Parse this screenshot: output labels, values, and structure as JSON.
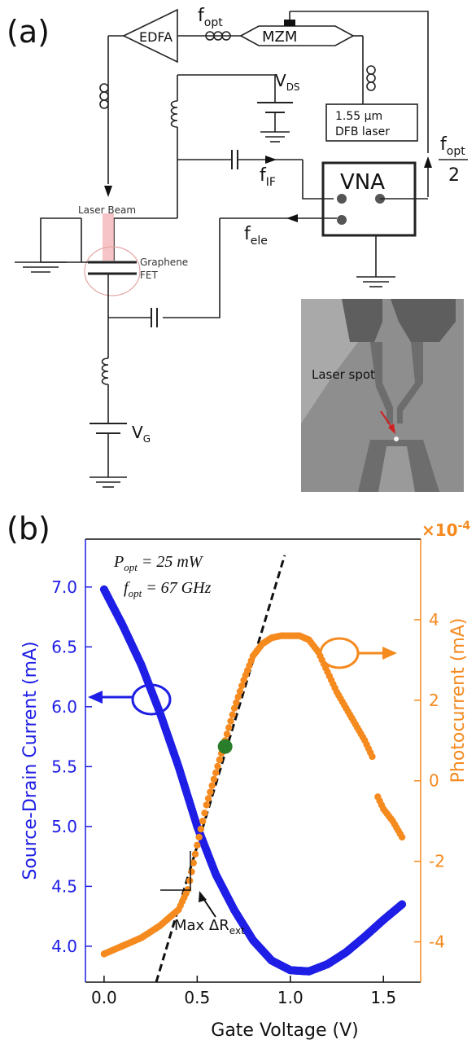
{
  "panel_a": {
    "label": "(a)",
    "edfa": "EDFA",
    "mzm": "MZM",
    "f_opt_base": "f",
    "f_opt_sub": "opt",
    "vds_base": "V",
    "vds_sub": "DS",
    "laser_line1": "1.55 μm",
    "laser_line2": "DFB laser",
    "vna": "VNA",
    "fopt2_num_base": "f",
    "fopt2_num_sub": "opt",
    "fopt2_den": "2",
    "fif_base": "f",
    "fif_sub": "IF",
    "fele_base": "f",
    "fele_sub": "ele",
    "laser_beam": "Laser Beam",
    "graphene1": "Graphene",
    "graphene2": "FET",
    "vg_base": "V",
    "vg_sub": "G",
    "inset_label": "Laser spot"
  },
  "panel_b": {
    "label": "(b)",
    "exp_label": "×10",
    "exp_sup": "-4",
    "popt_base": "P",
    "popt_sub": "opt",
    "popt_val": " = 25 mW",
    "fopt_base": "f",
    "fopt_sub": "opt",
    "fopt_val": " = 67 GHz",
    "ylabel_left": "Source-Drain Current (mA)",
    "ylabel_right": "Photocurrent (mA)",
    "xlabel": "Gate Voltage (V)",
    "max_label": "Max ΔR",
    "max_sub": "ext"
  },
  "colors": {
    "blue": "#1e1ee6",
    "orange": "#f58a1f",
    "green": "#2a7d2a"
  },
  "chart_data": {
    "type": "scatter",
    "xlabel": "Gate Voltage (V)",
    "ylabel": "Source-Drain Current (mA)",
    "y2label": "Photocurrent (mA)",
    "y2_multiplier": "×10^-4",
    "xlim": [
      -0.1,
      1.7
    ],
    "ylim": [
      3.7,
      7.4
    ],
    "y2lim": [
      -5,
      6
    ],
    "xticks": [
      "0.0",
      "0.5",
      "1.0",
      "1.5"
    ],
    "yticks": [
      "4.0",
      "4.5",
      "5.0",
      "5.5",
      "6.0",
      "6.5",
      "7.0"
    ],
    "y2ticks": [
      "-4",
      "-2",
      "0",
      "2",
      "4"
    ],
    "series": [
      {
        "name": "Source-Drain Current",
        "axis": "left",
        "color": "#1e1ee6",
        "x": [
          0.0,
          0.1,
          0.2,
          0.3,
          0.4,
          0.5,
          0.6,
          0.7,
          0.8,
          0.9,
          1.0,
          1.1,
          1.2,
          1.3,
          1.4,
          1.5,
          1.6
        ],
        "y": [
          6.98,
          6.68,
          6.35,
          5.95,
          5.5,
          5.0,
          4.6,
          4.3,
          4.05,
          3.88,
          3.8,
          3.79,
          3.85,
          3.95,
          4.08,
          4.22,
          4.35
        ]
      },
      {
        "name": "Photocurrent",
        "axis": "right",
        "color": "#f58a1f",
        "x": [
          0.0,
          0.1,
          0.2,
          0.3,
          0.35,
          0.4,
          0.45,
          0.5,
          0.55,
          0.6,
          0.65,
          0.7,
          0.75,
          0.8,
          0.85,
          0.9,
          0.95,
          1.0,
          1.05,
          1.1,
          1.15,
          1.2,
          1.25,
          1.3,
          1.35,
          1.4,
          1.45,
          1.47,
          1.5,
          1.55,
          1.6
        ],
        "y": [
          -4.3,
          -4.1,
          -3.9,
          -3.6,
          -3.4,
          -3.2,
          -2.7,
          -1.6,
          -0.6,
          0.2,
          1.0,
          1.8,
          2.5,
          3.1,
          3.4,
          3.55,
          3.6,
          3.6,
          3.6,
          3.5,
          3.2,
          2.7,
          2.2,
          1.8,
          1.4,
          1.0,
          0.5,
          -0.4,
          -0.7,
          -1.0,
          -1.4
        ]
      }
    ],
    "annotations": [
      {
        "type": "marker",
        "x": 0.65,
        "y2": 0.85,
        "color": "#2a7d2a"
      },
      {
        "type": "dashed-fit",
        "from": [
          0.28,
          -5.0
        ],
        "to": [
          0.97,
          5.6
        ]
      }
    ]
  }
}
